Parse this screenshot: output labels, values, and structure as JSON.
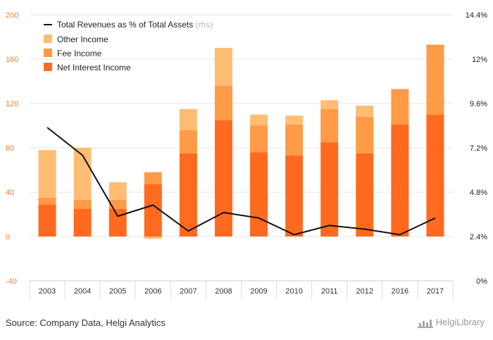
{
  "chart_data": {
    "type": "bar",
    "stacked": true,
    "categories": [
      "2003",
      "2004",
      "2005",
      "2006",
      "2007",
      "2008",
      "2009",
      "2010",
      "2011",
      "2012",
      "2016",
      "2017"
    ],
    "series": [
      {
        "name": "Net Interest Income",
        "color": "#ff6a1f",
        "values": [
          29,
          25,
          25,
          47,
          75,
          105,
          76,
          73,
          85,
          75,
          101,
          110
        ]
      },
      {
        "name": "Fee Income",
        "color": "#ff9a47",
        "values": [
          6,
          8,
          8,
          11,
          21,
          31,
          24,
          28,
          30,
          33,
          32,
          63
        ]
      },
      {
        "name": "Other Income",
        "color": "#ffbd73",
        "values": [
          43,
          47,
          16,
          -2,
          19,
          34,
          10,
          8,
          8,
          10,
          0,
          0
        ]
      }
    ],
    "line": {
      "name": "Total Revenues as % of Total Assets",
      "note": "(rhs)",
      "color": "#111111",
      "values": [
        8.3,
        6.8,
        3.5,
        4.1,
        2.7,
        3.7,
        3.4,
        2.5,
        3.0,
        2.8,
        2.5,
        3.4
      ]
    },
    "y_left": {
      "min": -40,
      "max": 200,
      "ticks": [
        "200",
        "160",
        "120",
        "80",
        "40",
        "0",
        "-40"
      ],
      "tick_values": [
        200,
        160,
        120,
        80,
        40,
        0,
        -40
      ]
    },
    "y_right": {
      "min": 0,
      "max": 14.4,
      "ticks": [
        "14.4%",
        "12%",
        "9.6%",
        "7.2%",
        "4.8%",
        "2.4%",
        "0%"
      ],
      "tick_values": [
        14.4,
        12,
        9.6,
        7.2,
        4.8,
        2.4,
        0
      ]
    },
    "grid": true,
    "legend_position": "top-left",
    "legend_order": [
      "line",
      "Other Income",
      "Fee Income",
      "Net Interest Income"
    ]
  },
  "footer": {
    "source": "Source: Company Data, Helgi Analytics",
    "logo": "HelgiLibrary"
  }
}
